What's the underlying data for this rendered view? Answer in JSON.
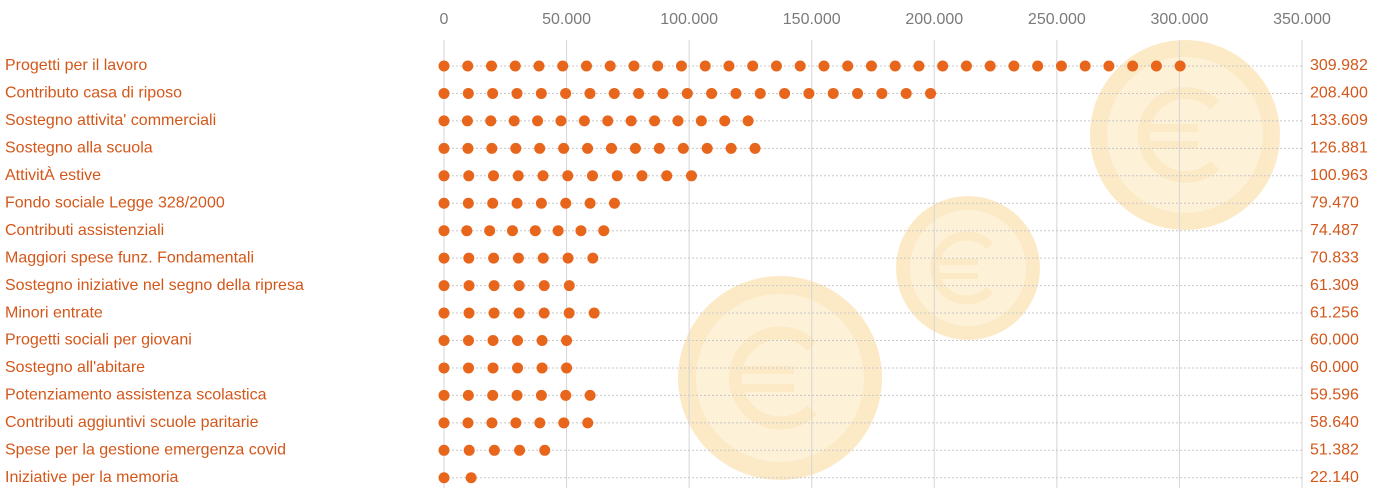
{
  "chart_data": {
    "type": "dotbar",
    "categories": [
      "Progetti per il lavoro",
      "Contributo casa di riposo",
      "Sostegno attivita' commerciali",
      "Sostegno alla scuola",
      "AttivitÀ estive",
      "Fondo sociale Legge 328/2000",
      "Contributi assistenziali",
      "Maggiori spese funz. Fondamentali",
      "Sostegno iniziative nel segno della ripresa",
      "Minori entrate",
      "Progetti sociali per giovani",
      "Sostegno all'abitare",
      "Potenziamento assistenza scolastica",
      "Contributi aggiuntivi scuole paritarie",
      "Spese per la gestione emergenza covid",
      "Iniziative per la memoria"
    ],
    "values": [
      309982,
      208400,
      133609,
      126881,
      100963,
      79470,
      74487,
      70833,
      61309,
      61256,
      60000,
      60000,
      59596,
      58640,
      51382,
      22140
    ],
    "value_labels": [
      "309.982",
      "208.400",
      "133.609",
      "126.881",
      "100.963",
      "79.470",
      "74.487",
      "70.833",
      "61.309",
      "61.256",
      "60.000",
      "60.000",
      "59.596",
      "58.640",
      "51.382",
      "22.140"
    ],
    "color": "#e8651c",
    "xlim": [
      0,
      350000
    ],
    "xticks": [
      0,
      {
        "value": 50000,
        "label": "50.000"
      },
      {
        "value": 100000,
        "label": "100.000"
      },
      {
        "value": 150000,
        "label": "150.000"
      },
      {
        "value": 200000,
        "label": "200.000"
      },
      {
        "value": 250000,
        "label": "250.000"
      },
      {
        "value": 300000,
        "label": "300.000"
      },
      {
        "value": 350000,
        "label": "350.000"
      }
    ],
    "grid": true
  }
}
